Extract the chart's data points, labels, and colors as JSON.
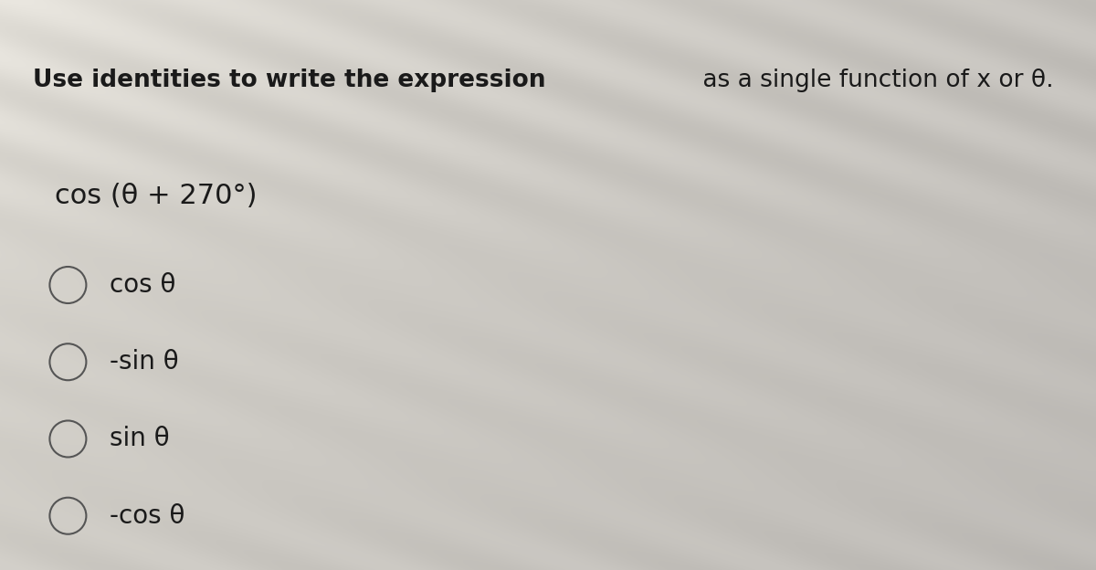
{
  "title_bold": "Use identities to write the expression",
  "title_normal": " as a single function of x or θ.",
  "expression": "cos (θ + 270°)",
  "options": [
    "cos θ",
    "-sin θ",
    "sin θ",
    "-cos θ"
  ],
  "bg_color_light": "#e8e5df",
  "bg_color_dark": "#b8b5af",
  "text_color": "#1a1a1a",
  "circle_edge_color": "#555555",
  "fig_width": 12.0,
  "fig_height": 6.24,
  "dpi": 100
}
